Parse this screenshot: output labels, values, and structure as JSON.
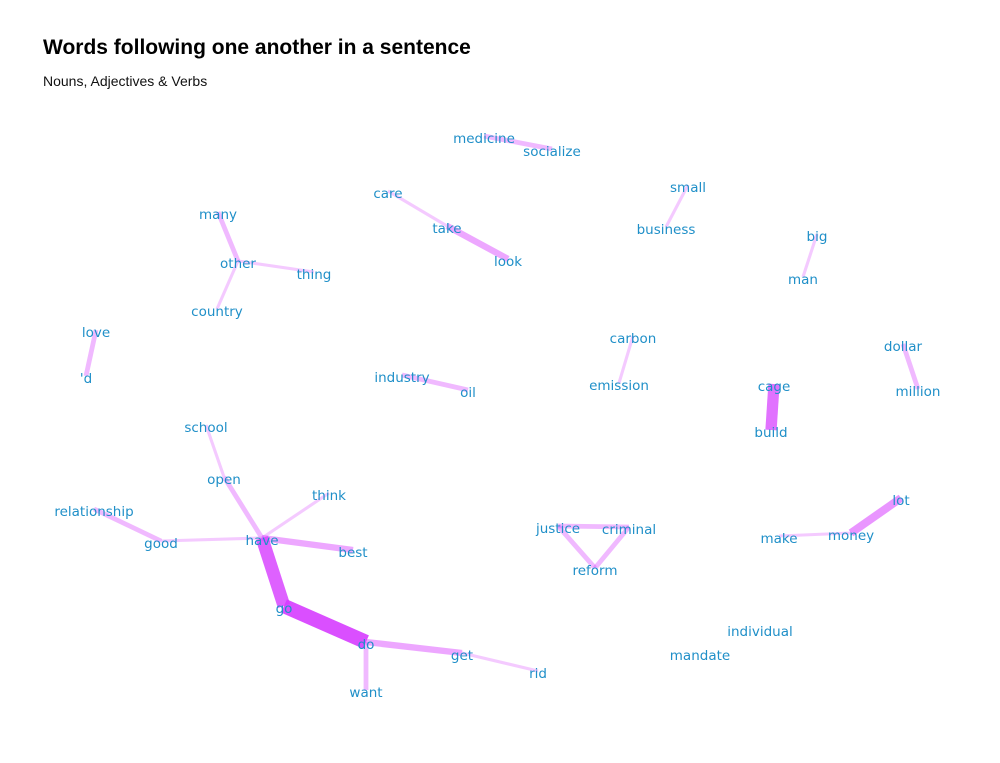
{
  "header": {
    "title": "Words following one another in a sentence",
    "subtitle": "Nouns, Adjectives & Verbs"
  },
  "colors": {
    "edge": "#d63cff",
    "label": "#1f8fc8",
    "background": "#ffffff"
  },
  "graph": {
    "nodes": [
      {
        "id": "medicine",
        "label": "medicine"
      },
      {
        "id": "socialize",
        "label": "socialize"
      },
      {
        "id": "care",
        "label": "care"
      },
      {
        "id": "take",
        "label": "take"
      },
      {
        "id": "look",
        "label": "look"
      },
      {
        "id": "small",
        "label": "small"
      },
      {
        "id": "business",
        "label": "business"
      },
      {
        "id": "many",
        "label": "many"
      },
      {
        "id": "other",
        "label": "other"
      },
      {
        "id": "thing",
        "label": "thing"
      },
      {
        "id": "country",
        "label": "country"
      },
      {
        "id": "big",
        "label": "big"
      },
      {
        "id": "man",
        "label": "man"
      },
      {
        "id": "love",
        "label": "love"
      },
      {
        "id": "d",
        "label": "'d"
      },
      {
        "id": "carbon",
        "label": "carbon"
      },
      {
        "id": "emission",
        "label": "emission"
      },
      {
        "id": "industry",
        "label": "industry"
      },
      {
        "id": "oil",
        "label": "oil"
      },
      {
        "id": "cage",
        "label": "cage"
      },
      {
        "id": "build",
        "label": "build"
      },
      {
        "id": "dollar",
        "label": "dollar"
      },
      {
        "id": "million",
        "label": "million"
      },
      {
        "id": "school",
        "label": "school"
      },
      {
        "id": "open",
        "label": "open"
      },
      {
        "id": "think",
        "label": "think"
      },
      {
        "id": "relationship",
        "label": "relationship"
      },
      {
        "id": "good",
        "label": "good"
      },
      {
        "id": "have",
        "label": "have"
      },
      {
        "id": "best",
        "label": "best"
      },
      {
        "id": "go",
        "label": "go"
      },
      {
        "id": "do",
        "label": "do"
      },
      {
        "id": "get",
        "label": "get"
      },
      {
        "id": "rid",
        "label": "rid"
      },
      {
        "id": "want",
        "label": "want"
      },
      {
        "id": "justice",
        "label": "justice"
      },
      {
        "id": "criminal",
        "label": "criminal"
      },
      {
        "id": "reform",
        "label": "reform"
      },
      {
        "id": "lot",
        "label": "lot"
      },
      {
        "id": "make",
        "label": "make"
      },
      {
        "id": "money",
        "label": "money"
      },
      {
        "id": "individual",
        "label": "individual"
      },
      {
        "id": "mandate",
        "label": "mandate"
      }
    ],
    "edges": [
      {
        "from": "medicine",
        "to": "socialize",
        "weight": 2
      },
      {
        "from": "care",
        "to": "take",
        "weight": 1
      },
      {
        "from": "take",
        "to": "look",
        "weight": 3
      },
      {
        "from": "small",
        "to": "business",
        "weight": 1
      },
      {
        "from": "many",
        "to": "other",
        "weight": 2
      },
      {
        "from": "other",
        "to": "thing",
        "weight": 1
      },
      {
        "from": "other",
        "to": "country",
        "weight": 1
      },
      {
        "from": "big",
        "to": "man",
        "weight": 1
      },
      {
        "from": "love",
        "to": "d",
        "weight": 2
      },
      {
        "from": "carbon",
        "to": "emission",
        "weight": 1
      },
      {
        "from": "industry",
        "to": "oil",
        "weight": 2
      },
      {
        "from": "cage",
        "to": "build",
        "weight": 6
      },
      {
        "from": "dollar",
        "to": "million",
        "weight": 2
      },
      {
        "from": "school",
        "to": "open",
        "weight": 1
      },
      {
        "from": "open",
        "to": "have",
        "weight": 2
      },
      {
        "from": "think",
        "to": "have",
        "weight": 1
      },
      {
        "from": "relationship",
        "to": "good",
        "weight": 2
      },
      {
        "from": "good",
        "to": "have",
        "weight": 1
      },
      {
        "from": "have",
        "to": "best",
        "weight": 3
      },
      {
        "from": "have",
        "to": "go",
        "weight": 7
      },
      {
        "from": "go",
        "to": "do",
        "weight": 8
      },
      {
        "from": "do",
        "to": "get",
        "weight": 3
      },
      {
        "from": "get",
        "to": "rid",
        "weight": 1
      },
      {
        "from": "do",
        "to": "want",
        "weight": 2
      },
      {
        "from": "justice",
        "to": "criminal",
        "weight": 2
      },
      {
        "from": "justice",
        "to": "reform",
        "weight": 2
      },
      {
        "from": "criminal",
        "to": "reform",
        "weight": 2
      },
      {
        "from": "lot",
        "to": "money",
        "weight": 4
      },
      {
        "from": "make",
        "to": "money",
        "weight": 1
      }
    ]
  }
}
